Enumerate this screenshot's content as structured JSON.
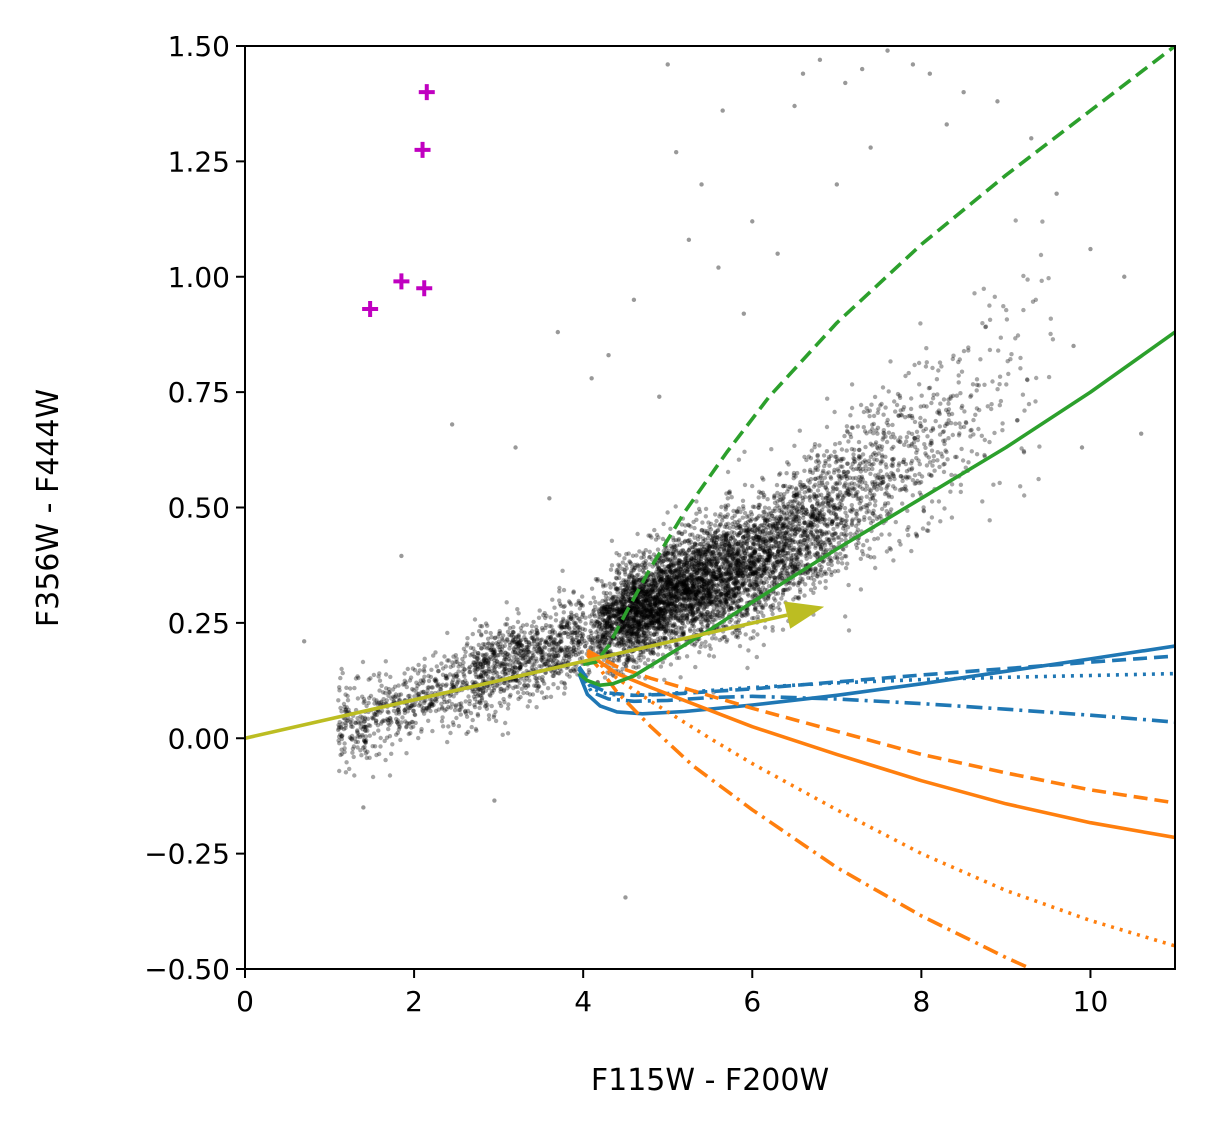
{
  "chart_data": {
    "type": "scatter",
    "title": "",
    "xlabel": "F115W - F200W",
    "ylabel": "F356W - F444W",
    "xlim": [
      0,
      11
    ],
    "ylim": [
      -0.5,
      1.5
    ],
    "grid": false,
    "xticks": [
      {
        "value": 0,
        "label": "0"
      },
      {
        "value": 2,
        "label": "2"
      },
      {
        "value": 4,
        "label": "4"
      },
      {
        "value": 6,
        "label": "6"
      },
      {
        "value": 8,
        "label": "8"
      },
      {
        "value": 10,
        "label": "10"
      }
    ],
    "yticks": [
      {
        "value": -0.5,
        "label": "−0.50"
      },
      {
        "value": -0.25,
        "label": "−0.25"
      },
      {
        "value": 0.0,
        "label": "0.00"
      },
      {
        "value": 0.25,
        "label": "0.25"
      },
      {
        "value": 0.5,
        "label": "0.50"
      },
      {
        "value": 0.75,
        "label": "0.75"
      },
      {
        "value": 1.0,
        "label": "1.00"
      },
      {
        "value": 1.25,
        "label": "1.25"
      },
      {
        "value": 1.5,
        "label": "1.50"
      }
    ],
    "colors": {
      "scatter": "#000000",
      "highlight": "#c000c0",
      "blue": "#1f77b4",
      "orange": "#ff7f0e",
      "green": "#2ca02c",
      "arrow": "#bcbd22"
    },
    "highlight_points": [
      {
        "x": 2.15,
        "y": 1.4
      },
      {
        "x": 2.1,
        "y": 1.275
      },
      {
        "x": 1.85,
        "y": 0.99
      },
      {
        "x": 2.12,
        "y": 0.975
      },
      {
        "x": 1.48,
        "y": 0.93
      }
    ],
    "scatter_outliers": [
      {
        "x": 0.7,
        "y": 0.21
      },
      {
        "x": 1.4,
        "y": -0.15
      },
      {
        "x": 2.95,
        "y": -0.135
      },
      {
        "x": 4.5,
        "y": -0.345
      },
      {
        "x": 1.85,
        "y": 0.395
      },
      {
        "x": 2.45,
        "y": 0.68
      },
      {
        "x": 3.2,
        "y": 0.63
      },
      {
        "x": 3.6,
        "y": 0.52
      },
      {
        "x": 3.7,
        "y": 0.88
      },
      {
        "x": 5.0,
        "y": 1.46
      },
      {
        "x": 5.1,
        "y": 1.27
      },
      {
        "x": 5.25,
        "y": 1.08
      },
      {
        "x": 5.65,
        "y": 1.36
      },
      {
        "x": 5.4,
        "y": 1.2
      },
      {
        "x": 6.5,
        "y": 1.37
      },
      {
        "x": 6.6,
        "y": 1.44
      },
      {
        "x": 6.8,
        "y": 1.47
      },
      {
        "x": 7.1,
        "y": 1.42
      },
      {
        "x": 7.3,
        "y": 1.45
      },
      {
        "x": 7.6,
        "y": 1.49
      },
      {
        "x": 7.9,
        "y": 1.46
      },
      {
        "x": 8.1,
        "y": 1.44
      },
      {
        "x": 8.5,
        "y": 1.4
      },
      {
        "x": 8.9,
        "y": 1.38
      },
      {
        "x": 9.3,
        "y": 1.3
      },
      {
        "x": 6.0,
        "y": 1.12
      },
      {
        "x": 6.3,
        "y": 1.05
      },
      {
        "x": 7.0,
        "y": 1.2
      },
      {
        "x": 7.4,
        "y": 1.28
      },
      {
        "x": 8.3,
        "y": 1.33
      },
      {
        "x": 9.6,
        "y": 1.18
      },
      {
        "x": 10.4,
        "y": 1.0
      },
      {
        "x": 10.6,
        "y": 0.66
      },
      {
        "x": 9.9,
        "y": 0.63
      },
      {
        "x": 10.0,
        "y": 1.06
      },
      {
        "x": 9.8,
        "y": 0.85
      },
      {
        "x": 4.6,
        "y": 0.95
      },
      {
        "x": 4.3,
        "y": 0.83
      },
      {
        "x": 4.9,
        "y": 0.74
      },
      {
        "x": 5.6,
        "y": 1.02
      },
      {
        "x": 5.9,
        "y": 0.92
      },
      {
        "x": 4.1,
        "y": 0.78
      }
    ],
    "scatter_cloud": {
      "count": 7000,
      "description_points": [
        {
          "x": 1.5,
          "y": 0.05
        },
        {
          "x": 4.0,
          "y": 0.22
        },
        {
          "x": 5.0,
          "y": 0.31
        },
        {
          "x": 6.0,
          "y": 0.38
        },
        {
          "x": 7.0,
          "y": 0.5
        },
        {
          "x": 8.0,
          "y": 0.63
        },
        {
          "x": 9.0,
          "y": 0.78
        }
      ]
    },
    "series": [
      {
        "color": "blue",
        "style": "solid",
        "x": [
          3.95,
          4.05,
          4.2,
          4.4,
          4.7,
          5.2,
          6,
          7,
          8,
          9,
          10,
          11
        ],
        "y": [
          0.14,
          0.095,
          0.07,
          0.057,
          0.053,
          0.058,
          0.072,
          0.093,
          0.118,
          0.145,
          0.172,
          0.2
        ]
      },
      {
        "color": "blue",
        "style": "dashed",
        "x": [
          3.95,
          4.1,
          4.3,
          4.6,
          5.0,
          6,
          7,
          8,
          9,
          10,
          11
        ],
        "y": [
          0.155,
          0.115,
          0.098,
          0.093,
          0.095,
          0.107,
          0.122,
          0.137,
          0.151,
          0.165,
          0.178
        ]
      },
      {
        "color": "blue",
        "style": "dotted",
        "x": [
          3.95,
          4.1,
          4.3,
          4.6,
          5.0,
          6,
          7,
          8,
          9,
          10,
          11
        ],
        "y": [
          0.15,
          0.108,
          0.095,
          0.093,
          0.097,
          0.11,
          0.12,
          0.127,
          0.132,
          0.136,
          0.14
        ]
      },
      {
        "color": "blue",
        "style": "dashdot",
        "x": [
          3.95,
          4.1,
          4.3,
          4.6,
          5.0,
          5.5,
          6,
          7,
          8,
          9,
          10,
          11
        ],
        "y": [
          0.15,
          0.1,
          0.085,
          0.08,
          0.082,
          0.088,
          0.091,
          0.085,
          0.075,
          0.063,
          0.05,
          0.035
        ]
      },
      {
        "color": "orange",
        "style": "solid",
        "x": [
          4.05,
          4.2,
          4.4,
          4.8,
          6,
          7,
          8,
          9,
          10,
          11
        ],
        "y": [
          0.185,
          0.165,
          0.14,
          0.11,
          0.025,
          -0.035,
          -0.092,
          -0.142,
          -0.183,
          -0.215
        ]
      },
      {
        "color": "orange",
        "style": "dashed",
        "x": [
          4.05,
          4.2,
          4.4,
          4.8,
          6,
          7,
          8,
          9,
          10,
          11
        ],
        "y": [
          0.19,
          0.175,
          0.155,
          0.13,
          0.065,
          0.015,
          -0.035,
          -0.075,
          -0.112,
          -0.14
        ]
      },
      {
        "color": "orange",
        "style": "dotted",
        "x": [
          4.05,
          4.2,
          4.4,
          4.8,
          5.5,
          6,
          7,
          8,
          9,
          10,
          11
        ],
        "y": [
          0.185,
          0.16,
          0.13,
          0.08,
          0.0,
          -0.055,
          -0.155,
          -0.25,
          -0.33,
          -0.395,
          -0.45
        ]
      },
      {
        "color": "orange",
        "style": "dashdot",
        "x": [
          4.05,
          4.2,
          4.4,
          4.8,
          5.3,
          6,
          7,
          8,
          9,
          9.3
        ],
        "y": [
          0.18,
          0.15,
          0.1,
          0.025,
          -0.06,
          -0.155,
          -0.28,
          -0.385,
          -0.475,
          -0.5
        ]
      },
      {
        "color": "green",
        "style": "solid",
        "x": [
          3.95,
          4.05,
          4.2,
          4.35,
          4.6,
          5,
          5.5,
          6,
          7,
          8,
          9,
          10,
          11
        ],
        "y": [
          0.14,
          0.125,
          0.115,
          0.118,
          0.135,
          0.18,
          0.235,
          0.295,
          0.41,
          0.52,
          0.63,
          0.75,
          0.88
        ]
      },
      {
        "color": "green",
        "style": "dashed",
        "x": [
          4.0,
          4.15,
          4.3,
          4.5,
          4.8,
          5.2,
          5.7,
          6.2,
          7,
          8,
          9,
          10,
          11
        ],
        "y": [
          0.16,
          0.165,
          0.2,
          0.27,
          0.37,
          0.49,
          0.62,
          0.74,
          0.9,
          1.07,
          1.22,
          1.36,
          1.5
        ]
      }
    ],
    "arrow": {
      "x0": 0,
      "y0": 0,
      "x1": 6.85,
      "y1": 0.285
    }
  }
}
